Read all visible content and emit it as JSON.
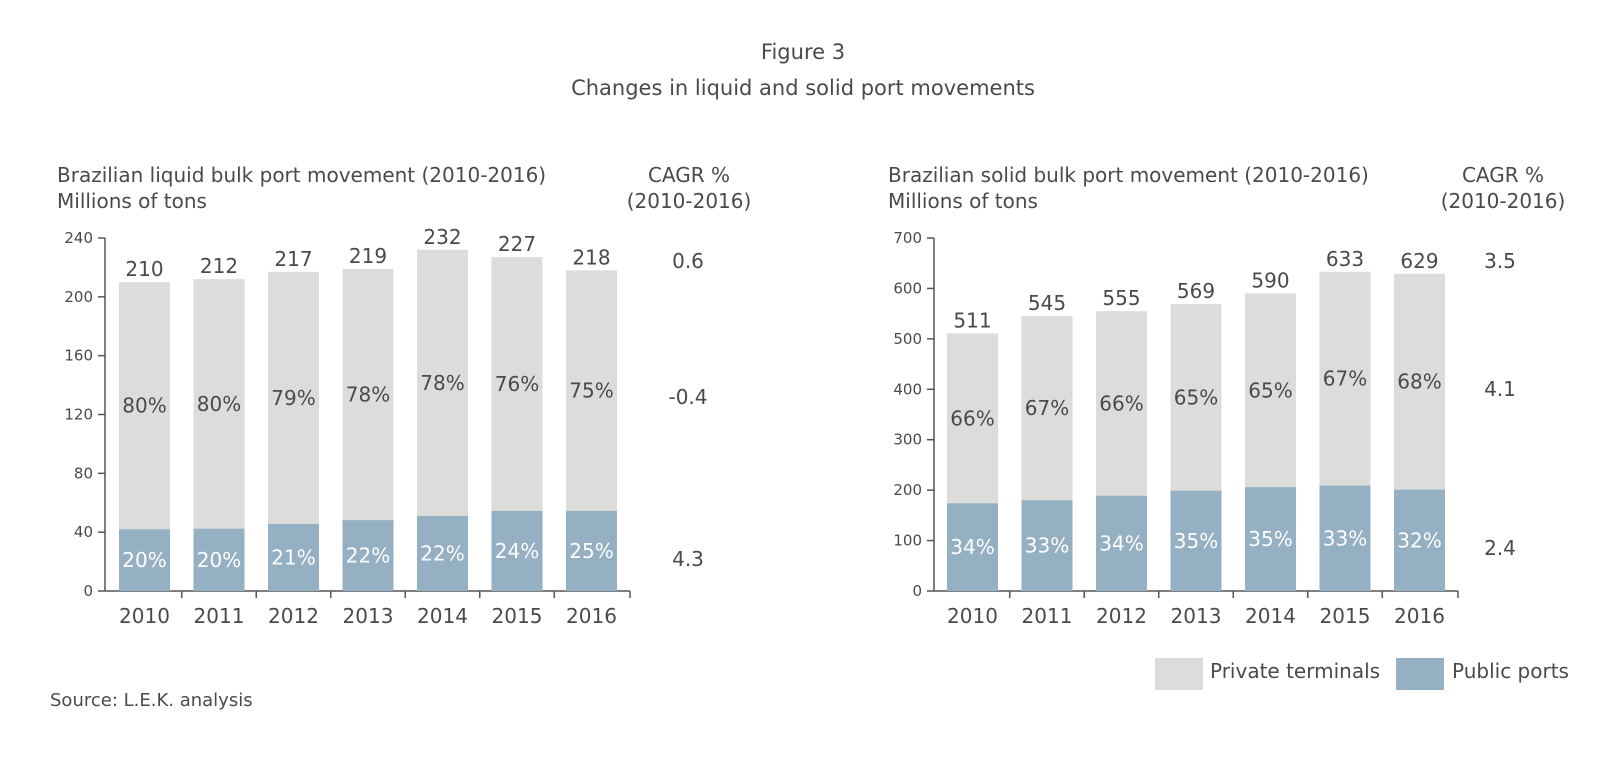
{
  "figure": {
    "number": "Figure 3",
    "title": "Changes in liquid and solid port movements"
  },
  "colors": {
    "private": "#dcdcdb",
    "public": "#95afc3",
    "text": "#4a4a4a",
    "axis": "#555555"
  },
  "cagr_header": [
    "CAGR %",
    "(2010-2016)"
  ],
  "legend": {
    "private_label": "Private terminals",
    "public_label": "Public ports"
  },
  "source": "Source: L.E.K. analysis",
  "chart_data": [
    {
      "type": "bar",
      "stacked": true,
      "title": "Brazilian liquid bulk port movement (2010-2016)",
      "subtitle": "Millions of tons",
      "categories": [
        "2010",
        "2011",
        "2012",
        "2013",
        "2014",
        "2015",
        "2016"
      ],
      "totals": [
        210,
        212,
        217,
        219,
        232,
        227,
        218
      ],
      "series": [
        {
          "name": "Public ports",
          "values": [
            42,
            42.4,
            45.6,
            48.2,
            51,
            54.5,
            54.5
          ],
          "share_labels": [
            "20%",
            "20%",
            "21%",
            "22%",
            "22%",
            "24%",
            "25%"
          ]
        },
        {
          "name": "Private terminals",
          "values": [
            168,
            169.6,
            171.4,
            170.8,
            181,
            172.5,
            163.5
          ],
          "share_labels": [
            "80%",
            "80%",
            "79%",
            "78%",
            "78%",
            "76%",
            "75%"
          ]
        }
      ],
      "ylim": [
        0,
        240
      ],
      "yticks": [
        0,
        40,
        80,
        120,
        160,
        200,
        240
      ],
      "cagr": {
        "total": "0.6",
        "private": "-0.4",
        "public": "4.3"
      }
    },
    {
      "type": "bar",
      "stacked": true,
      "title": "Brazilian solid bulk port movement (2010-2016)",
      "subtitle": "Millions of tons",
      "categories": [
        "2010",
        "2011",
        "2012",
        "2013",
        "2014",
        "2015",
        "2016"
      ],
      "totals": [
        511,
        545,
        555,
        569,
        590,
        633,
        629
      ],
      "series": [
        {
          "name": "Public ports",
          "values": [
            174,
            180,
            189,
            199,
            206,
            209,
            201
          ],
          "share_labels": [
            "34%",
            "33%",
            "34%",
            "35%",
            "35%",
            "33%",
            "32%"
          ]
        },
        {
          "name": "Private terminals",
          "values": [
            337,
            365,
            366,
            370,
            384,
            424,
            428
          ],
          "share_labels": [
            "66%",
            "67%",
            "66%",
            "65%",
            "65%",
            "67%",
            "68%"
          ]
        }
      ],
      "ylim": [
        0,
        700
      ],
      "yticks": [
        0,
        100,
        200,
        300,
        400,
        500,
        600,
        700
      ],
      "cagr": {
        "total": "3.5",
        "private": "4.1",
        "public": "2.4"
      }
    }
  ]
}
